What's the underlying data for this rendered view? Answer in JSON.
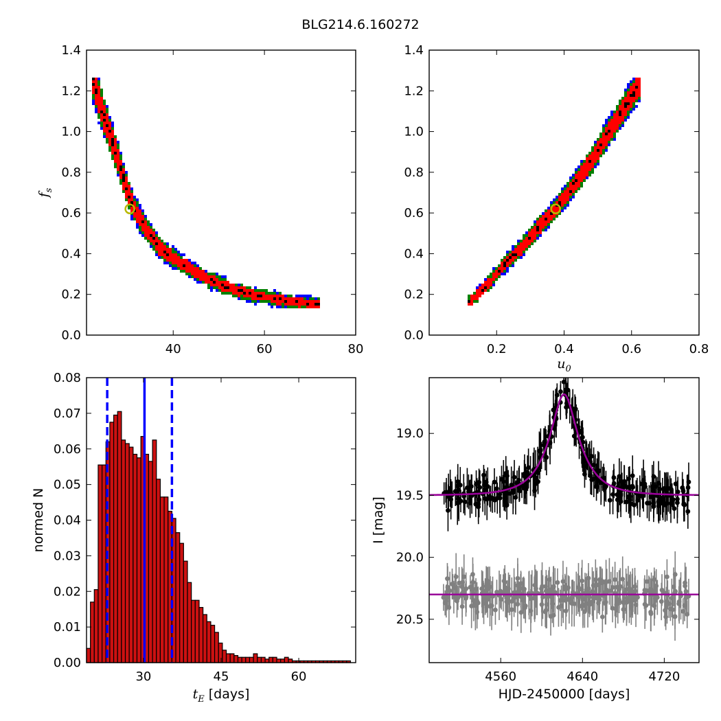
{
  "figure_title": "BLG214.6.160272",
  "colors": {
    "sigma3": "#0000ff",
    "sigma2": "#008000",
    "sigma1": "#ff0000",
    "best": "#000000",
    "marker_edge": "#b8b800",
    "hist_bar": "#cc1111",
    "vline": "#0000ff",
    "model": "#990099",
    "data": "#000000",
    "baseline_data": "#808080"
  },
  "chart_data": [
    {
      "id": "fs_vs_tE",
      "type": "heatmap",
      "title": "",
      "xlabel": "",
      "ylabel": "f_s",
      "ylabel_display": "f",
      "ylabel_sub": "s",
      "xlim": [
        21,
        80
      ],
      "ylim": [
        0.0,
        1.4
      ],
      "xticks": [
        40,
        60,
        80
      ],
      "yticks": [
        0.0,
        0.2,
        0.4,
        0.6,
        0.8,
        1.0,
        1.2,
        1.4
      ],
      "xtick_labels": [
        "40",
        "60",
        "80"
      ],
      "ytick_labels": [
        "0.0",
        "0.2",
        "0.4",
        "0.6",
        "0.8",
        "1.0",
        "1.2",
        "1.4"
      ],
      "ridge": [
        [
          22.5,
          1.25
        ],
        [
          25,
          1.06
        ],
        [
          27,
          0.93
        ],
        [
          29,
          0.78
        ],
        [
          31,
          0.64
        ],
        [
          33,
          0.56
        ],
        [
          35,
          0.49
        ],
        [
          37,
          0.43
        ],
        [
          40,
          0.38
        ],
        [
          44,
          0.32
        ],
        [
          48,
          0.27
        ],
        [
          53,
          0.225
        ],
        [
          58,
          0.195
        ],
        [
          63,
          0.175
        ],
        [
          67,
          0.16
        ],
        [
          72,
          0.15
        ]
      ],
      "best_fit": {
        "x": 30.5,
        "y": 0.62
      }
    },
    {
      "id": "fs_vs_u0",
      "type": "heatmap",
      "title": "",
      "xlabel": "u_0",
      "xlabel_display": "u",
      "xlabel_sub": "0",
      "ylabel": "",
      "xlim": [
        0.0,
        0.8
      ],
      "ylim": [
        0.0,
        1.4
      ],
      "xticks": [
        0.2,
        0.4,
        0.6,
        0.8
      ],
      "yticks": [
        0.0,
        0.2,
        0.4,
        0.6,
        0.8,
        1.0,
        1.2,
        1.4
      ],
      "xtick_labels": [
        "0.2",
        "0.4",
        "0.6",
        "0.8"
      ],
      "ytick_labels": [
        "0.0",
        "0.2",
        "0.4",
        "0.6",
        "0.8",
        "1.0",
        "1.2",
        "1.4"
      ],
      "ridge": [
        [
          0.12,
          0.16
        ],
        [
          0.18,
          0.26
        ],
        [
          0.23,
          0.36
        ],
        [
          0.28,
          0.44
        ],
        [
          0.33,
          0.54
        ],
        [
          0.38,
          0.63
        ],
        [
          0.43,
          0.74
        ],
        [
          0.48,
          0.85
        ],
        [
          0.53,
          0.99
        ],
        [
          0.58,
          1.12
        ],
        [
          0.63,
          1.25
        ]
      ],
      "best_fit": {
        "x": 0.375,
        "y": 0.62
      }
    },
    {
      "id": "tE_histogram",
      "type": "bar",
      "title": "",
      "xlabel": "t_E [days]",
      "xlabel_display": "t",
      "xlabel_sub": "E",
      "xlabel_units": " [days]",
      "ylabel": "normed N",
      "xlim": [
        19,
        71
      ],
      "ylim": [
        0.0,
        0.08
      ],
      "xticks": [
        30,
        45,
        60
      ],
      "yticks": [
        0.0,
        0.01,
        0.02,
        0.03,
        0.04,
        0.05,
        0.06,
        0.07,
        0.08
      ],
      "xtick_labels": [
        "30",
        "45",
        "60"
      ],
      "ytick_labels": [
        "0.00",
        "0.01",
        "0.02",
        "0.03",
        "0.04",
        "0.05",
        "0.06",
        "0.07",
        "0.08"
      ],
      "bin_start": 19.0,
      "bin_width": 0.75,
      "values": [
        0.004,
        0.017,
        0.0205,
        0.0555,
        0.0555,
        0.062,
        0.0675,
        0.0695,
        0.0705,
        0.0625,
        0.0615,
        0.0605,
        0.0585,
        0.0575,
        0.0635,
        0.0585,
        0.0565,
        0.0625,
        0.0515,
        0.0465,
        0.0465,
        0.0425,
        0.0405,
        0.0365,
        0.0335,
        0.0285,
        0.0225,
        0.0175,
        0.0175,
        0.0155,
        0.0135,
        0.0115,
        0.0105,
        0.0085,
        0.0055,
        0.0035,
        0.0025,
        0.0025,
        0.002,
        0.0015,
        0.0015,
        0.0015,
        0.0015,
        0.0025,
        0.0015,
        0.0015,
        0.001,
        0.0015,
        0.0015,
        0.001,
        0.001,
        0.0015,
        0.001,
        0.0005,
        0.0005,
        0.0005,
        0.0005,
        0.0005,
        0.0005,
        0.0005,
        0.0005,
        0.0005,
        0.0005,
        0.0005,
        0.0005,
        0.0005,
        0.0005,
        0.0005
      ],
      "vlines": [
        {
          "x": 23.0,
          "style": "dashed"
        },
        {
          "x": 30.2,
          "style": "solid"
        },
        {
          "x": 35.5,
          "style": "dashed"
        }
      ]
    },
    {
      "id": "light_curve",
      "type": "scatter",
      "title": "",
      "xlabel": "HJD-2450000 [days]",
      "ylabel": "I [mag]",
      "xlim": [
        4490,
        4754
      ],
      "ylim": [
        20.85,
        18.55
      ],
      "xticks": [
        4560,
        4640,
        4720
      ],
      "yticks": [
        19.0,
        19.5,
        20.0,
        20.5
      ],
      "xtick_labels": [
        "4560",
        "4640",
        "4720"
      ],
      "ytick_labels": [
        "19.0",
        "19.5",
        "20.0",
        "20.5"
      ],
      "model": {
        "t0": 4622,
        "tE": 30.2,
        "u0": 0.375,
        "fs": 0.62,
        "baseline": 19.5
      },
      "residual_baseline": 20.3,
      "series": [
        {
          "role": "data",
          "n_points": 300,
          "scatter_mag": 0.1,
          "err_range": [
            0.08,
            0.18
          ]
        },
        {
          "role": "residuals",
          "n_points": 300,
          "scatter_mag": 0.12,
          "err_range": [
            0.08,
            0.2
          ]
        }
      ]
    }
  ]
}
